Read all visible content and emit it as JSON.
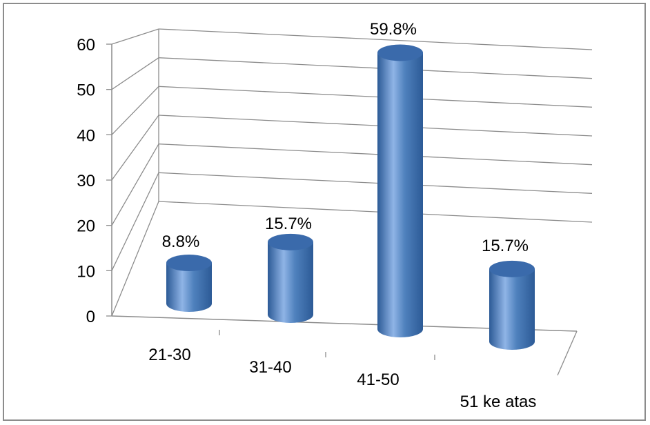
{
  "colors": {
    "bar_light": "#8fb4e6",
    "bar_mid": "#4f81bd",
    "bar_dark": "#2c5a96",
    "bar_top": "#3a6aab",
    "grid": "#8c8c8c",
    "frame": "#8c8c8c"
  },
  "chart_data": {
    "type": "bar",
    "style": "3d-cylinder",
    "categories": [
      "21-30",
      "31-40",
      "41-50",
      "51 ke atas"
    ],
    "values": [
      8.8,
      15.7,
      59.8,
      15.7
    ],
    "data_labels": [
      "8.8%",
      "15.7%",
      "59.8%",
      "15.7%"
    ],
    "y_ticks": [
      "0",
      "10",
      "20",
      "30",
      "40",
      "50",
      "60"
    ],
    "ylim": [
      0,
      60
    ],
    "grid": true,
    "legend": false,
    "title": "",
    "xlabel": "",
    "ylabel": ""
  }
}
